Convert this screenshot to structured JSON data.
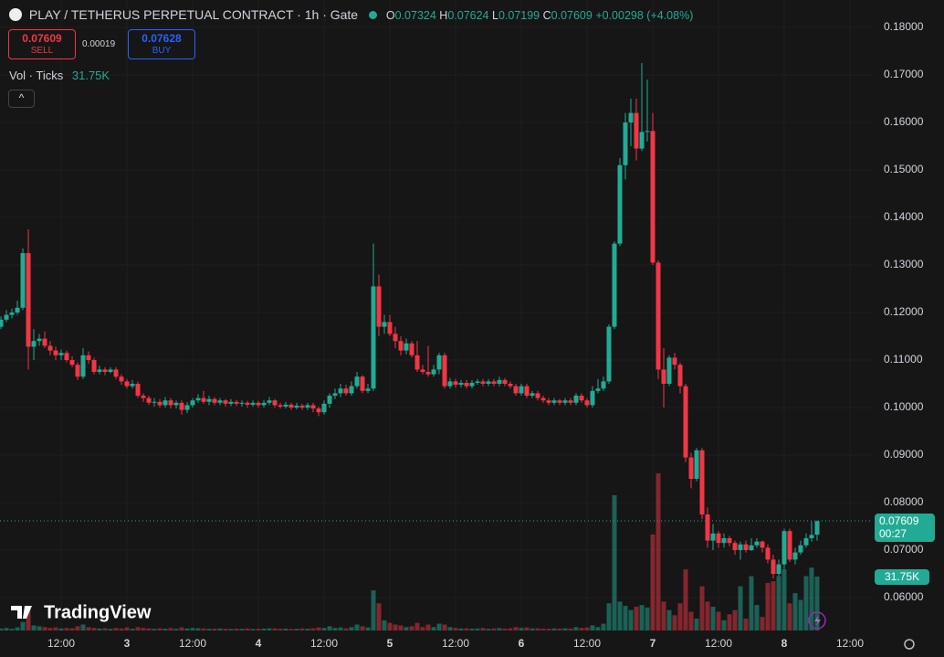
{
  "chart_data": {
    "type": "candlestick",
    "title": "PLAY / TETHERUS PERPETUAL CONTRACT · 1h · Gate",
    "ohlc_letters": [
      "O",
      "H",
      "L",
      "C"
    ],
    "change": "+0.00298 (+4.08%)",
    "sell_label": "SELL",
    "buy_label": "BUY",
    "buy_price": "0.07628",
    "spread": "0.00019",
    "volume_title": "Vol · Ticks",
    "volume_value_label": "31.75K",
    "countdown": "00:27",
    "brand": "TradingView",
    "up_color": "#22ab94",
    "down_color": "#f23645",
    "grid": true,
    "ylim": [
      0.0475,
      0.18577
    ],
    "yticks": [
      {
        "value": 0.06,
        "label": "0.06000"
      },
      {
        "value": 0.07,
        "label": "0.07000"
      },
      {
        "value": 0.08,
        "label": "0.08000"
      },
      {
        "value": 0.09,
        "label": "0.09000"
      },
      {
        "value": 0.1,
        "label": "0.10000"
      },
      {
        "value": 0.11,
        "label": "0.11000"
      },
      {
        "value": 0.12,
        "label": "0.12000"
      },
      {
        "value": 0.13,
        "label": "0.13000"
      },
      {
        "value": 0.14,
        "label": "0.14000"
      },
      {
        "value": 0.15,
        "label": "0.15000"
      },
      {
        "value": 0.16,
        "label": "0.16000"
      },
      {
        "value": 0.17,
        "label": "0.17000"
      },
      {
        "value": 0.18,
        "label": "0.18000"
      }
    ],
    "xlim": [
      -0.17,
      159
    ],
    "xticks": [
      {
        "value": 11,
        "label": "12:00"
      },
      {
        "value": 23,
        "label": "3"
      },
      {
        "value": 35,
        "label": "12:00"
      },
      {
        "value": 47,
        "label": "4"
      },
      {
        "value": 59,
        "label": "12:00"
      },
      {
        "value": 71,
        "label": "5"
      },
      {
        "value": 83,
        "label": "12:00"
      },
      {
        "value": 95,
        "label": "6"
      },
      {
        "value": 107,
        "label": "12:00"
      },
      {
        "value": 119,
        "label": "7"
      },
      {
        "value": 131,
        "label": "12:00"
      },
      {
        "value": 143,
        "label": "8"
      },
      {
        "value": 155,
        "label": "12:00"
      }
    ],
    "ohlc": [
      [
        0.117,
        0.1192,
        0.1165,
        0.1185
      ],
      [
        0.1185,
        0.1205,
        0.118,
        0.1195
      ],
      [
        0.1195,
        0.1208,
        0.1188,
        0.12
      ],
      [
        0.12,
        0.1225,
        0.1195,
        0.121
      ],
      [
        0.121,
        0.1335,
        0.1205,
        0.1325
      ],
      [
        0.1325,
        0.1375,
        0.108,
        0.1128
      ],
      [
        0.1128,
        0.1165,
        0.11,
        0.114
      ],
      [
        0.114,
        0.1155,
        0.113,
        0.1145
      ],
      [
        0.1145,
        0.116,
        0.1125,
        0.113
      ],
      [
        0.113,
        0.114,
        0.111,
        0.112
      ],
      [
        0.112,
        0.1128,
        0.11,
        0.111
      ],
      [
        0.111,
        0.1122,
        0.11,
        0.1115
      ],
      [
        0.1115,
        0.112,
        0.1095,
        0.11
      ],
      [
        0.11,
        0.1108,
        0.1085,
        0.109
      ],
      [
        0.109,
        0.1095,
        0.1058,
        0.1065
      ],
      [
        0.1065,
        0.1125,
        0.106,
        0.111
      ],
      [
        0.111,
        0.1118,
        0.1092,
        0.11
      ],
      [
        0.11,
        0.1105,
        0.107,
        0.1075
      ],
      [
        0.1075,
        0.1088,
        0.107,
        0.108
      ],
      [
        0.108,
        0.1085,
        0.1068,
        0.1075
      ],
      [
        0.1075,
        0.1085,
        0.1072,
        0.108
      ],
      [
        0.108,
        0.1085,
        0.106,
        0.1065
      ],
      [
        0.1065,
        0.107,
        0.1048,
        0.1055
      ],
      [
        0.1055,
        0.106,
        0.104,
        0.1045
      ],
      [
        0.1045,
        0.1058,
        0.104,
        0.105
      ],
      [
        0.105,
        0.1055,
        0.102,
        0.1025
      ],
      [
        0.1025,
        0.103,
        0.1012,
        0.102
      ],
      [
        0.102,
        0.1025,
        0.1005,
        0.101
      ],
      [
        0.101,
        0.102,
        0.1002,
        0.1012
      ],
      [
        0.1012,
        0.1018,
        0.1,
        0.1005
      ],
      [
        0.1005,
        0.1022,
        0.1,
        0.1015
      ],
      [
        0.1015,
        0.102,
        0.0998,
        0.1005
      ],
      [
        0.1005,
        0.1015,
        0.0998,
        0.101
      ],
      [
        0.101,
        0.1015,
        0.0985,
        0.0995
      ],
      [
        0.0995,
        0.1012,
        0.0988,
        0.1005
      ],
      [
        0.1005,
        0.102,
        0.1,
        0.1015
      ],
      [
        0.1015,
        0.1028,
        0.101,
        0.102
      ],
      [
        0.102,
        0.1035,
        0.1008,
        0.1012
      ],
      [
        0.1012,
        0.1025,
        0.1005,
        0.1018
      ],
      [
        0.1018,
        0.1022,
        0.1005,
        0.101
      ],
      [
        0.101,
        0.102,
        0.1005,
        0.1015
      ],
      [
        0.1015,
        0.1018,
        0.1002,
        0.1008
      ],
      [
        0.1008,
        0.1018,
        0.1003,
        0.1012
      ],
      [
        0.1012,
        0.1016,
        0.1003,
        0.1008
      ],
      [
        0.1008,
        0.1015,
        0.1002,
        0.101
      ],
      [
        0.101,
        0.1014,
        0.1,
        0.1006
      ],
      [
        0.1006,
        0.1015,
        0.1002,
        0.101
      ],
      [
        0.101,
        0.1014,
        0.1,
        0.1005
      ],
      [
        0.1005,
        0.1016,
        0.1,
        0.101
      ],
      [
        0.101,
        0.1022,
        0.1005,
        0.1015
      ],
      [
        0.1015,
        0.1018,
        0.1,
        0.1005
      ],
      [
        0.1005,
        0.101,
        0.0998,
        0.1002
      ],
      [
        0.1002,
        0.1012,
        0.0998,
        0.1006
      ],
      [
        0.1006,
        0.101,
        0.0995,
        0.1
      ],
      [
        0.1,
        0.101,
        0.0996,
        0.1004
      ],
      [
        0.1004,
        0.1008,
        0.0995,
        0.1
      ],
      [
        0.1,
        0.101,
        0.0995,
        0.1005
      ],
      [
        0.1005,
        0.101,
        0.099,
        0.0998
      ],
      [
        0.0998,
        0.1002,
        0.0982,
        0.099
      ],
      [
        0.099,
        0.1015,
        0.0985,
        0.1008
      ],
      [
        0.1008,
        0.103,
        0.1,
        0.1025
      ],
      [
        0.1025,
        0.104,
        0.1018,
        0.103
      ],
      [
        0.103,
        0.105,
        0.1022,
        0.104
      ],
      [
        0.104,
        0.1048,
        0.1025,
        0.103
      ],
      [
        0.103,
        0.1055,
        0.1025,
        0.1045
      ],
      [
        0.1045,
        0.1075,
        0.104,
        0.1065
      ],
      [
        0.1065,
        0.1068,
        0.103,
        0.1035
      ],
      [
        0.1035,
        0.105,
        0.103,
        0.104
      ],
      [
        0.104,
        0.1345,
        0.1035,
        0.1255
      ],
      [
        0.1255,
        0.128,
        0.115,
        0.117
      ],
      [
        0.117,
        0.1195,
        0.1155,
        0.118
      ],
      [
        0.118,
        0.1195,
        0.115,
        0.1155
      ],
      [
        0.1155,
        0.117,
        0.1125,
        0.114
      ],
      [
        0.114,
        0.115,
        0.111,
        0.112
      ],
      [
        0.112,
        0.1145,
        0.1112,
        0.1135
      ],
      [
        0.1135,
        0.114,
        0.1105,
        0.111
      ],
      [
        0.111,
        0.114,
        0.1075,
        0.108
      ],
      [
        0.108,
        0.109,
        0.107,
        0.1075
      ],
      [
        0.1075,
        0.113,
        0.1065,
        0.107
      ],
      [
        0.107,
        0.109,
        0.1065,
        0.108
      ],
      [
        0.108,
        0.1115,
        0.107,
        0.111
      ],
      [
        0.111,
        0.1115,
        0.104,
        0.1045
      ],
      [
        0.1045,
        0.1062,
        0.104,
        0.1055
      ],
      [
        0.1055,
        0.106,
        0.1042,
        0.1048
      ],
      [
        0.1048,
        0.1058,
        0.1042,
        0.1052
      ],
      [
        0.1052,
        0.1058,
        0.104,
        0.1045
      ],
      [
        0.1045,
        0.1058,
        0.104,
        0.1052
      ],
      [
        0.1052,
        0.106,
        0.1048,
        0.1055
      ],
      [
        0.1055,
        0.106,
        0.1045,
        0.105
      ],
      [
        0.105,
        0.106,
        0.1045,
        0.1055
      ],
      [
        0.1055,
        0.106,
        0.1045,
        0.105
      ],
      [
        0.105,
        0.1065,
        0.1045,
        0.1058
      ],
      [
        0.1058,
        0.1062,
        0.1045,
        0.105
      ],
      [
        0.105,
        0.1055,
        0.104,
        0.1045
      ],
      [
        0.1045,
        0.105,
        0.1025,
        0.103
      ],
      [
        0.103,
        0.105,
        0.1025,
        0.1045
      ],
      [
        0.1045,
        0.105,
        0.102,
        0.1025
      ],
      [
        0.1025,
        0.1035,
        0.102,
        0.103
      ],
      [
        0.103,
        0.1035,
        0.1015,
        0.102
      ],
      [
        0.102,
        0.1025,
        0.101,
        0.1015
      ],
      [
        0.1015,
        0.102,
        0.1005,
        0.101
      ],
      [
        0.101,
        0.102,
        0.1005,
        0.1015
      ],
      [
        0.1015,
        0.1018,
        0.1005,
        0.101
      ],
      [
        0.101,
        0.102,
        0.1005,
        0.1015
      ],
      [
        0.1015,
        0.102,
        0.1005,
        0.101
      ],
      [
        0.101,
        0.103,
        0.1005,
        0.1025
      ],
      [
        0.1025,
        0.103,
        0.101,
        0.1015
      ],
      [
        0.1015,
        0.102,
        0.1,
        0.1005
      ],
      [
        0.1005,
        0.1045,
        0.1,
        0.1035
      ],
      [
        0.1035,
        0.106,
        0.103,
        0.104
      ],
      [
        0.104,
        0.1065,
        0.1035,
        0.1055
      ],
      [
        0.1055,
        0.1175,
        0.105,
        0.117
      ],
      [
        0.117,
        0.135,
        0.1165,
        0.1345
      ],
      [
        0.1345,
        0.1525,
        0.134,
        0.151
      ],
      [
        0.151,
        0.162,
        0.148,
        0.16
      ],
      [
        0.16,
        0.165,
        0.155,
        0.162
      ],
      [
        0.162,
        0.165,
        0.152,
        0.1545
      ],
      [
        0.1545,
        0.1725,
        0.154,
        0.158
      ],
      [
        0.158,
        0.169,
        0.156,
        0.1582
      ],
      [
        0.1582,
        0.162,
        0.13,
        0.1305
      ],
      [
        0.1305,
        0.131,
        0.106,
        0.108
      ],
      [
        0.108,
        0.1125,
        0.1,
        0.105
      ],
      [
        0.105,
        0.111,
        0.1045,
        0.1105
      ],
      [
        0.1105,
        0.1115,
        0.108,
        0.109
      ],
      [
        0.109,
        0.1095,
        0.103,
        0.1045
      ],
      [
        0.1045,
        0.105,
        0.0885,
        0.0895
      ],
      [
        0.0895,
        0.0905,
        0.083,
        0.085
      ],
      [
        0.085,
        0.0915,
        0.0845,
        0.091
      ],
      [
        0.091,
        0.0915,
        0.0765,
        0.0775
      ],
      [
        0.0775,
        0.079,
        0.0705,
        0.072
      ],
      [
        0.072,
        0.0755,
        0.07,
        0.0735
      ],
      [
        0.0735,
        0.074,
        0.0705,
        0.0715
      ],
      [
        0.0715,
        0.0735,
        0.0705,
        0.0725
      ],
      [
        0.0725,
        0.073,
        0.0708,
        0.0715
      ],
      [
        0.0715,
        0.072,
        0.069,
        0.07
      ],
      [
        0.07,
        0.0718,
        0.068,
        0.0712
      ],
      [
        0.0712,
        0.072,
        0.0695,
        0.07
      ],
      [
        0.07,
        0.0725,
        0.0698,
        0.071
      ],
      [
        0.071,
        0.0725,
        0.0705,
        0.0718
      ],
      [
        0.0718,
        0.072,
        0.0695,
        0.0705
      ],
      [
        0.0705,
        0.0712,
        0.0672,
        0.068
      ],
      [
        0.068,
        0.069,
        0.064,
        0.065
      ],
      [
        0.065,
        0.068,
        0.0645,
        0.067
      ],
      [
        0.067,
        0.0745,
        0.066,
        0.074
      ],
      [
        0.074,
        0.0745,
        0.0675,
        0.068
      ],
      [
        0.068,
        0.0705,
        0.067,
        0.0695
      ],
      [
        0.0695,
        0.072,
        0.069,
        0.071
      ],
      [
        0.071,
        0.0735,
        0.0705,
        0.0725
      ],
      [
        0.0725,
        0.076,
        0.0718,
        0.0732
      ],
      [
        0.07324,
        0.07624,
        0.07199,
        0.07609
      ]
    ],
    "volume": [
      1200,
      1500,
      1000,
      1800,
      5000,
      13000,
      3000,
      2500,
      2000,
      1500,
      1800,
      1200,
      1500,
      1300,
      2500,
      3500,
      2000,
      1500,
      1200,
      1400,
      1000,
      1500,
      1200,
      1800,
      1000,
      2000,
      1500,
      1200,
      1000,
      1300,
      1100,
      1400,
      1000,
      1800,
      1200,
      1500,
      1300,
      1200,
      1000,
      1100,
      1200,
      1000,
      900,
      1100,
      1000,
      1200,
      900,
      1000,
      1100,
      1300,
      1200,
      1000,
      1100,
      900,
      1000,
      1200,
      1100,
      1300,
      1800,
      1500,
      2500,
      1500,
      1800,
      1200,
      2000,
      3500,
      2500,
      1800,
      23600,
      16000,
      6000,
      4500,
      3500,
      3000,
      2000,
      2500,
      4500,
      2000,
      3500,
      2000,
      4000,
      3500,
      2000,
      1500,
      1200,
      1300,
      1100,
      1200,
      1500,
      1000,
      1200,
      1400,
      1100,
      1300,
      2000,
      1500,
      1800,
      1200,
      1300,
      1100,
      1000,
      1200,
      1100,
      1300,
      1200,
      2000,
      1500,
      1800,
      3000,
      2000,
      4000,
      16000,
      79600,
      17000,
      14500,
      12000,
      14000,
      15000,
      13500,
      56500,
      92500,
      17000,
      12000,
      9000,
      16000,
      36000,
      11000,
      7000,
      26000,
      17000,
      14000,
      11000,
      6000,
      9500,
      12000,
      26000,
      7000,
      32000,
      15000,
      8000,
      28000,
      29000,
      32000,
      36000,
      16000,
      22000,
      18000,
      32000,
      37000,
      31750
    ]
  }
}
